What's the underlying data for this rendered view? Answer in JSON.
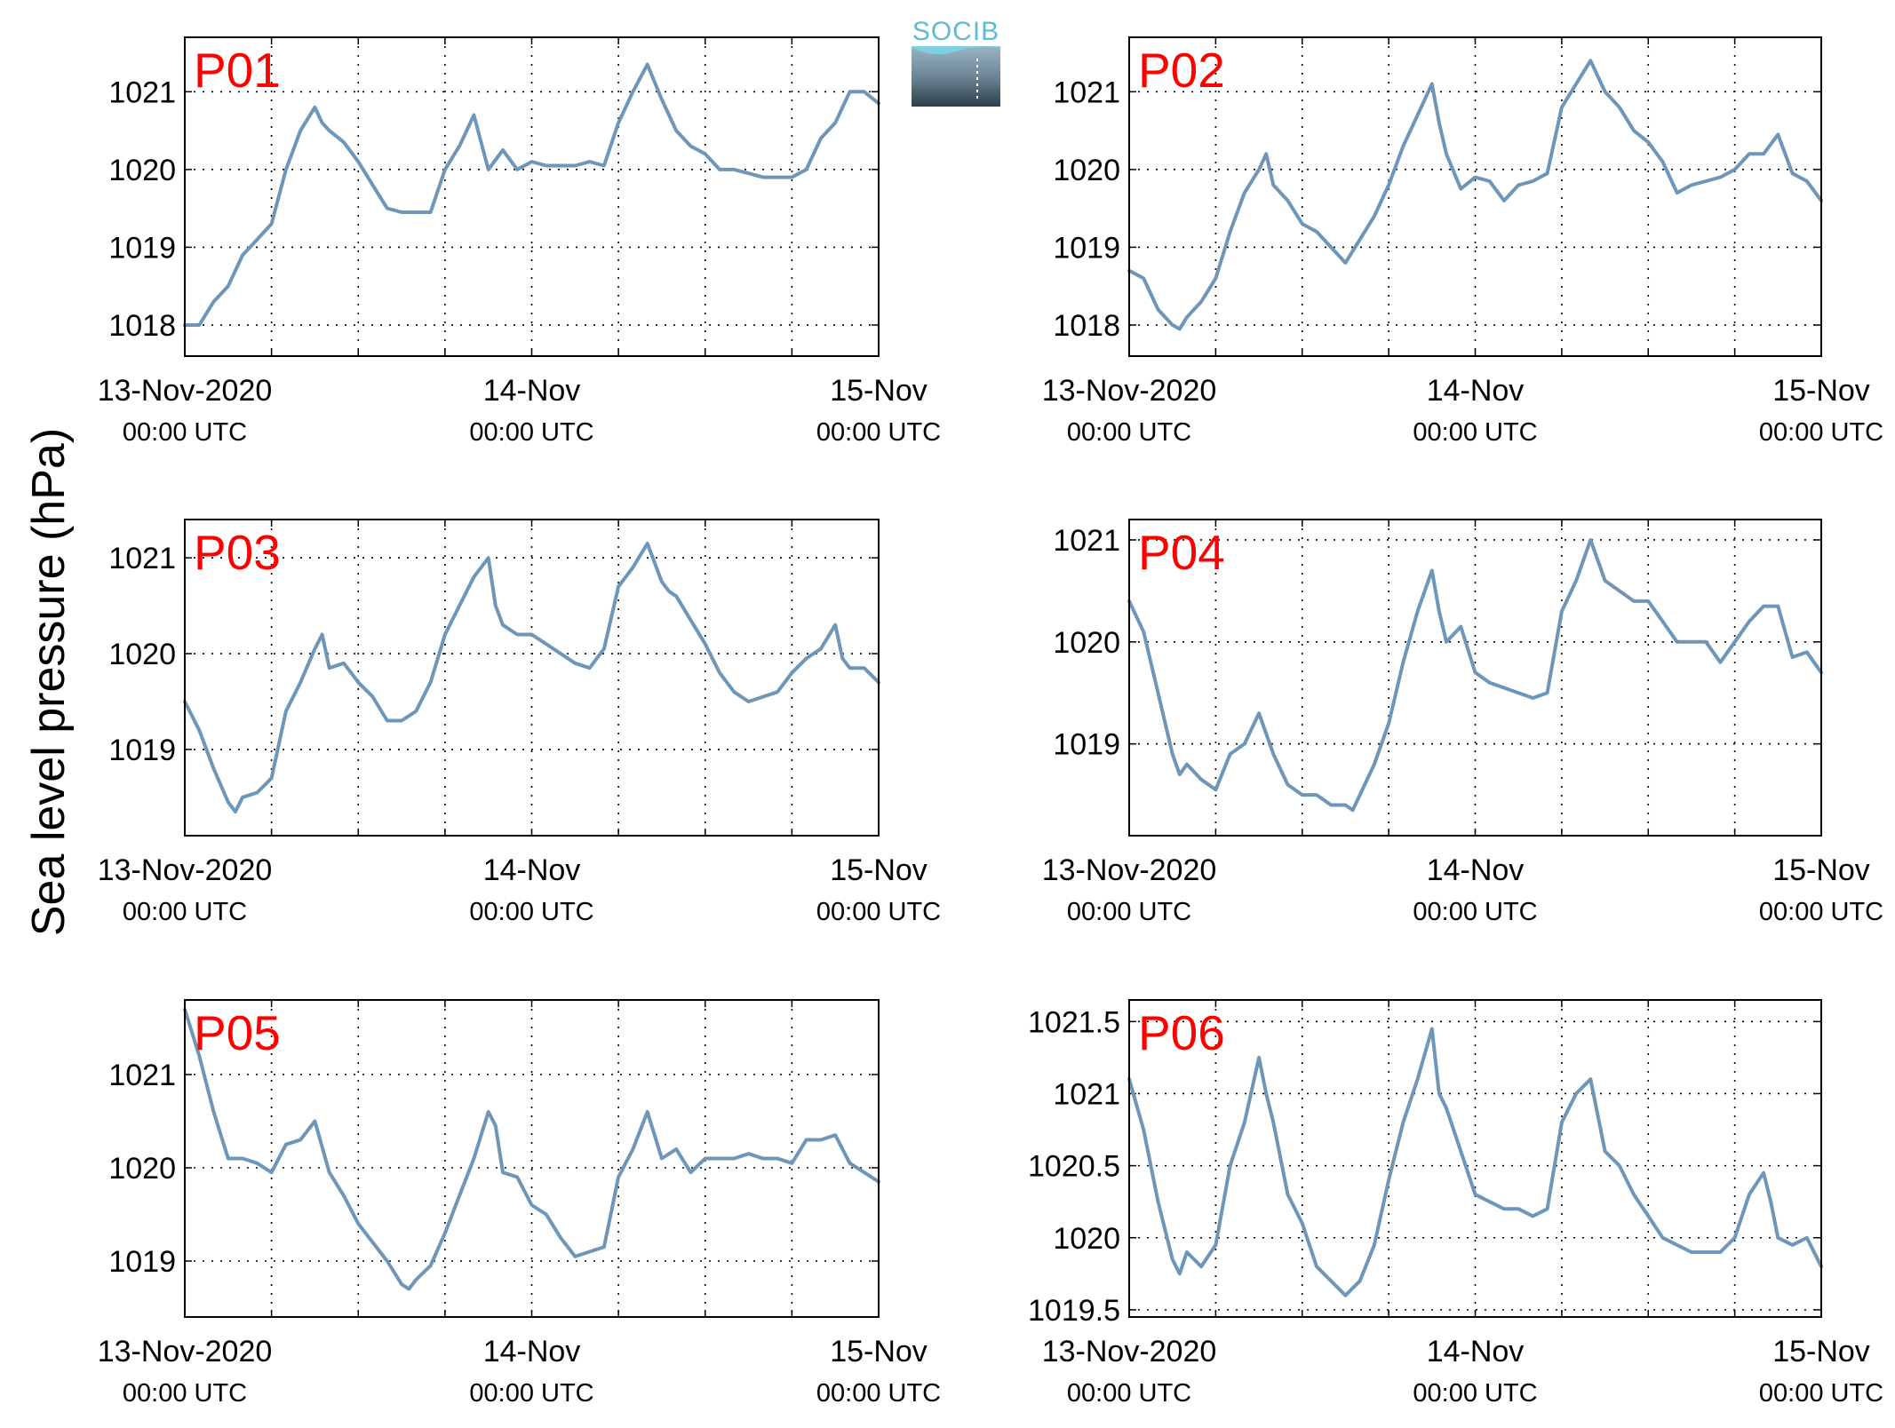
{
  "figure": {
    "ylabel": "Sea level pressure (hPa)",
    "logo_text": "SOCIB",
    "line_color": "#6e96b8",
    "label_color": "#ff0000"
  },
  "chart_data": [
    {
      "type": "line",
      "label": "P01",
      "x_range_hours": [
        0,
        48
      ],
      "x_ticks": [
        {
          "hour": 0,
          "date": "13-Nov-2020",
          "time": "00:00 UTC"
        },
        {
          "hour": 24,
          "date": "14-Nov",
          "time": "00:00 UTC"
        },
        {
          "hour": 48,
          "date": "15-Nov",
          "time": "00:00 UTC"
        }
      ],
      "x_grid_hours": [
        6,
        12,
        18,
        24,
        30,
        36,
        42
      ],
      "ylim": [
        1017.6,
        1021.7
      ],
      "yticks": [
        1018,
        1019,
        1020,
        1021
      ],
      "ytick_labels": [
        "1018",
        "1019",
        "1020",
        "1021"
      ],
      "grid": true,
      "x": [
        0,
        1,
        2,
        3,
        4,
        5,
        6,
        7,
        8,
        9,
        9.5,
        10,
        11,
        12,
        13,
        14,
        15,
        16,
        17,
        18,
        19,
        20,
        21,
        22,
        23,
        24,
        25,
        26,
        27,
        28,
        29,
        30,
        31,
        32,
        33,
        34,
        35,
        36,
        37,
        38,
        39,
        40,
        41,
        42,
        43,
        44,
        45,
        46,
        47,
        48
      ],
      "y": [
        1018.0,
        1018.0,
        1018.3,
        1018.5,
        1018.9,
        1019.1,
        1019.3,
        1020.0,
        1020.5,
        1020.8,
        1020.6,
        1020.5,
        1020.35,
        1020.1,
        1019.8,
        1019.5,
        1019.45,
        1019.45,
        1019.45,
        1020.0,
        1020.3,
        1020.7,
        1020.0,
        1020.25,
        1020.0,
        1020.1,
        1020.05,
        1020.05,
        1020.05,
        1020.1,
        1020.05,
        1020.6,
        1021.0,
        1021.35,
        1020.9,
        1020.5,
        1020.3,
        1020.2,
        1020.0,
        1020.0,
        1019.95,
        1019.9,
        1019.9,
        1019.9,
        1020.0,
        1020.4,
        1020.6,
        1021.0,
        1021.0,
        1020.85
      ]
    },
    {
      "type": "line",
      "label": "P02",
      "x_range_hours": [
        0,
        48
      ],
      "x_ticks": [
        {
          "hour": 0,
          "date": "13-Nov-2020",
          "time": "00:00 UTC"
        },
        {
          "hour": 24,
          "date": "14-Nov",
          "time": "00:00 UTC"
        },
        {
          "hour": 48,
          "date": "15-Nov",
          "time": "00:00 UTC"
        }
      ],
      "x_grid_hours": [
        6,
        12,
        18,
        24,
        30,
        36,
        42
      ],
      "ylim": [
        1017.6,
        1021.7
      ],
      "yticks": [
        1018,
        1019,
        1020,
        1021
      ],
      "ytick_labels": [
        "1018",
        "1019",
        "1020",
        "1021"
      ],
      "grid": true,
      "x": [
        0,
        1,
        2,
        3,
        3.5,
        4,
        5,
        6,
        7,
        8,
        9,
        9.5,
        10,
        11,
        12,
        13,
        14,
        15,
        16,
        17,
        18,
        19,
        20,
        21,
        21.5,
        22,
        23,
        24,
        25,
        26,
        27,
        28,
        29,
        30,
        31,
        32,
        33,
        34,
        35,
        36,
        37,
        38,
        39,
        40,
        41,
        42,
        43,
        44,
        45,
        46,
        47,
        48
      ],
      "y": [
        1018.7,
        1018.6,
        1018.2,
        1018.0,
        1017.95,
        1018.1,
        1018.3,
        1018.6,
        1019.2,
        1019.7,
        1020.0,
        1020.2,
        1019.8,
        1019.6,
        1019.3,
        1019.2,
        1019.0,
        1018.8,
        1019.1,
        1019.4,
        1019.8,
        1020.3,
        1020.7,
        1021.1,
        1020.6,
        1020.2,
        1019.75,
        1019.9,
        1019.85,
        1019.6,
        1019.8,
        1019.85,
        1019.95,
        1020.8,
        1021.1,
        1021.4,
        1021.0,
        1020.8,
        1020.5,
        1020.35,
        1020.1,
        1019.7,
        1019.8,
        1019.85,
        1019.9,
        1020.0,
        1020.2,
        1020.2,
        1020.45,
        1019.95,
        1019.85,
        1019.6
      ]
    },
    {
      "type": "line",
      "label": "P03",
      "x_range_hours": [
        0,
        48
      ],
      "x_ticks": [
        {
          "hour": 0,
          "date": "13-Nov-2020",
          "time": "00:00 UTC"
        },
        {
          "hour": 24,
          "date": "14-Nov",
          "time": "00:00 UTC"
        },
        {
          "hour": 48,
          "date": "15-Nov",
          "time": "00:00 UTC"
        }
      ],
      "x_grid_hours": [
        6,
        12,
        18,
        24,
        30,
        36,
        42
      ],
      "ylim": [
        1018.1,
        1021.4
      ],
      "yticks": [
        1019,
        1020,
        1021
      ],
      "ytick_labels": [
        "1019",
        "1020",
        "1021"
      ],
      "grid": true,
      "x": [
        0,
        1,
        2,
        3,
        3.5,
        4,
        5,
        6,
        7,
        8,
        9,
        9.5,
        10,
        11,
        12,
        13,
        14,
        15,
        16,
        17,
        18,
        19,
        20,
        21,
        21.5,
        22,
        23,
        24,
        25,
        26,
        27,
        28,
        29,
        30,
        31,
        32,
        33,
        33.5,
        34,
        35,
        36,
        37,
        38,
        39,
        40,
        41,
        42,
        43,
        44,
        45,
        45.5,
        46,
        47,
        48
      ],
      "y": [
        1019.5,
        1019.2,
        1018.8,
        1018.45,
        1018.35,
        1018.5,
        1018.55,
        1018.7,
        1019.4,
        1019.7,
        1020.05,
        1020.2,
        1019.85,
        1019.9,
        1019.7,
        1019.55,
        1019.3,
        1019.3,
        1019.4,
        1019.7,
        1020.2,
        1020.5,
        1020.8,
        1021.0,
        1020.5,
        1020.3,
        1020.2,
        1020.2,
        1020.1,
        1020.0,
        1019.9,
        1019.85,
        1020.05,
        1020.7,
        1020.9,
        1021.15,
        1020.75,
        1020.65,
        1020.6,
        1020.35,
        1020.1,
        1019.8,
        1019.6,
        1019.5,
        1019.55,
        1019.6,
        1019.8,
        1019.95,
        1020.05,
        1020.3,
        1019.95,
        1019.85,
        1019.85,
        1019.7
      ]
    },
    {
      "type": "line",
      "label": "P04",
      "x_range_hours": [
        0,
        48
      ],
      "x_ticks": [
        {
          "hour": 0,
          "date": "13-Nov-2020",
          "time": "00:00 UTC"
        },
        {
          "hour": 24,
          "date": "14-Nov",
          "time": "00:00 UTC"
        },
        {
          "hour": 48,
          "date": "15-Nov",
          "time": "00:00 UTC"
        }
      ],
      "x_grid_hours": [
        6,
        12,
        18,
        24,
        30,
        36,
        42
      ],
      "ylim": [
        1018.1,
        1021.2
      ],
      "yticks": [
        1019,
        1020,
        1021
      ],
      "ytick_labels": [
        "1019",
        "1020",
        "1021"
      ],
      "grid": true,
      "x": [
        0,
        1,
        2,
        3,
        3.5,
        4,
        5,
        6,
        7,
        8,
        9,
        9.5,
        10,
        11,
        12,
        13,
        14,
        15,
        15.5,
        16,
        17,
        18,
        19,
        20,
        21,
        21.5,
        22,
        23,
        24,
        25,
        26,
        27,
        28,
        29,
        30,
        31,
        32,
        33,
        34,
        35,
        36,
        37,
        38,
        39,
        40,
        41,
        42,
        43,
        44,
        45,
        46,
        47,
        48
      ],
      "y": [
        1020.4,
        1020.1,
        1019.5,
        1018.9,
        1018.7,
        1018.8,
        1018.65,
        1018.55,
        1018.9,
        1019.0,
        1019.3,
        1019.1,
        1018.9,
        1018.6,
        1018.5,
        1018.5,
        1018.4,
        1018.4,
        1018.35,
        1018.5,
        1018.8,
        1019.2,
        1019.8,
        1020.3,
        1020.7,
        1020.3,
        1020.0,
        1020.15,
        1019.7,
        1019.6,
        1019.55,
        1019.5,
        1019.45,
        1019.5,
        1020.3,
        1020.6,
        1021.0,
        1020.6,
        1020.5,
        1020.4,
        1020.4,
        1020.2,
        1020.0,
        1020.0,
        1020.0,
        1019.8,
        1020.0,
        1020.2,
        1020.35,
        1020.35,
        1019.85,
        1019.9,
        1019.7
      ]
    },
    {
      "type": "line",
      "label": "P05",
      "x_range_hours": [
        0,
        48
      ],
      "x_ticks": [
        {
          "hour": 0,
          "date": "13-Nov-2020",
          "time": "00:00 UTC"
        },
        {
          "hour": 24,
          "date": "14-Nov",
          "time": "00:00 UTC"
        },
        {
          "hour": 48,
          "date": "15-Nov",
          "time": "00:00 UTC"
        }
      ],
      "x_grid_hours": [
        6,
        12,
        18,
        24,
        30,
        36,
        42
      ],
      "ylim": [
        1018.4,
        1021.8
      ],
      "yticks": [
        1019,
        1020,
        1021
      ],
      "ytick_labels": [
        "1019",
        "1020",
        "1021"
      ],
      "grid": true,
      "x": [
        0,
        1,
        2,
        3,
        4,
        5,
        6,
        7,
        8,
        9,
        10,
        11,
        12,
        13,
        14,
        15,
        15.5,
        16,
        17,
        18,
        19,
        20,
        21,
        21.5,
        22,
        23,
        24,
        25,
        26,
        27,
        28,
        29,
        30,
        31,
        32,
        33,
        34,
        35,
        36,
        37,
        38,
        39,
        40,
        41,
        42,
        43,
        44,
        45,
        46,
        47,
        48
      ],
      "y": [
        1021.7,
        1021.2,
        1020.6,
        1020.1,
        1020.1,
        1020.05,
        1019.95,
        1020.25,
        1020.3,
        1020.5,
        1019.95,
        1019.7,
        1019.4,
        1019.2,
        1019.0,
        1018.75,
        1018.7,
        1018.8,
        1018.95,
        1019.3,
        1019.7,
        1020.1,
        1020.6,
        1020.45,
        1019.95,
        1019.9,
        1019.6,
        1019.5,
        1019.25,
        1019.05,
        1019.1,
        1019.15,
        1019.9,
        1020.2,
        1020.6,
        1020.1,
        1020.2,
        1019.95,
        1020.1,
        1020.1,
        1020.1,
        1020.15,
        1020.1,
        1020.1,
        1020.05,
        1020.3,
        1020.3,
        1020.35,
        1020.05,
        1019.95,
        1019.85
      ]
    },
    {
      "type": "line",
      "label": "P06",
      "x_range_hours": [
        0,
        48
      ],
      "x_ticks": [
        {
          "hour": 0,
          "date": "13-Nov-2020",
          "time": "00:00 UTC"
        },
        {
          "hour": 24,
          "date": "14-Nov",
          "time": "00:00 UTC"
        },
        {
          "hour": 48,
          "date": "15-Nov",
          "time": "00:00 UTC"
        }
      ],
      "x_grid_hours": [
        6,
        12,
        18,
        24,
        30,
        36,
        42
      ],
      "ylim": [
        1019.45,
        1021.65
      ],
      "yticks": [
        1019.5,
        1020,
        1020.5,
        1021,
        1021.5
      ],
      "ytick_labels": [
        "1019.5",
        "1020",
        "1020.5",
        "1021",
        "1021.5"
      ],
      "grid": true,
      "x": [
        0,
        1,
        2,
        3,
        3.5,
        4,
        5,
        6,
        7,
        8,
        9,
        9.5,
        10,
        11,
        12,
        13,
        14,
        15,
        15.5,
        16,
        17,
        18,
        19,
        20,
        21,
        21.5,
        22,
        23,
        24,
        25,
        26,
        27,
        28,
        29,
        30,
        31,
        32,
        33,
        34,
        35,
        36,
        37,
        38,
        39,
        40,
        41,
        42,
        43,
        44,
        44.5,
        45,
        46,
        47,
        48
      ],
      "y": [
        1021.1,
        1020.75,
        1020.25,
        1019.85,
        1019.75,
        1019.9,
        1019.8,
        1019.95,
        1020.5,
        1020.8,
        1021.25,
        1021.0,
        1020.8,
        1020.3,
        1020.1,
        1019.8,
        1019.7,
        1019.6,
        1019.65,
        1019.7,
        1019.95,
        1020.4,
        1020.8,
        1021.1,
        1021.45,
        1021.0,
        1020.9,
        1020.6,
        1020.3,
        1020.25,
        1020.2,
        1020.2,
        1020.15,
        1020.2,
        1020.8,
        1021.0,
        1021.1,
        1020.6,
        1020.5,
        1020.3,
        1020.15,
        1020.0,
        1019.95,
        1019.9,
        1019.9,
        1019.9,
        1020.0,
        1020.3,
        1020.45,
        1020.25,
        1020.0,
        1019.95,
        1020.0,
        1019.8
      ]
    }
  ]
}
